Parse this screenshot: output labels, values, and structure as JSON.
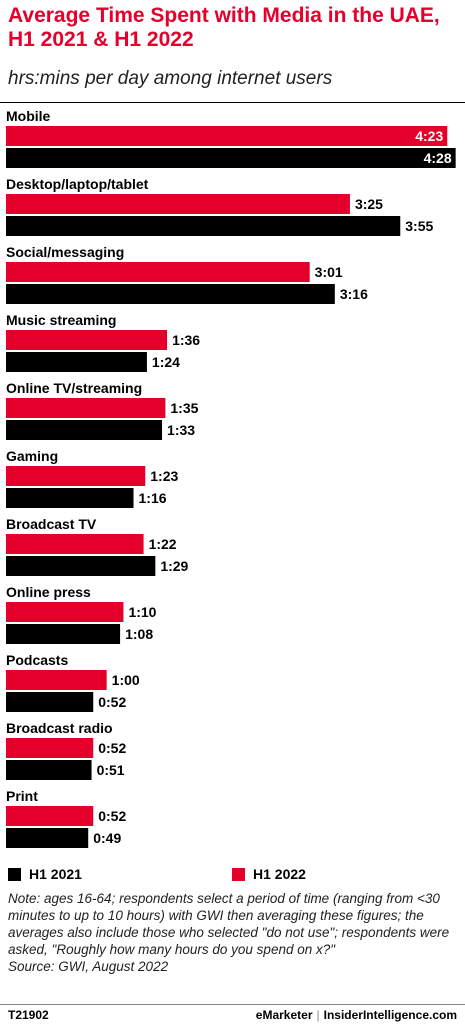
{
  "header": {
    "title": "Average Time Spent with Media in the UAE, H1 2021 & H1 2022",
    "subtitle": "hrs:mins per day among internet users"
  },
  "colors": {
    "h1_2022": "#e4002b",
    "h1_2021": "#000000"
  },
  "chart_data": {
    "type": "bar",
    "orientation": "horizontal",
    "categories": [
      "Mobile",
      "Desktop/laptop/tablet",
      "Social/messaging",
      "Music streaming",
      "Online TV/streaming",
      "Gaming",
      "Broadcast TV",
      "Online press",
      "Podcasts",
      "Broadcast radio",
      "Print"
    ],
    "series": [
      {
        "name": "H1 2022",
        "values": [
          263,
          205,
          181,
          96,
          95,
          83,
          82,
          70,
          60,
          52,
          52
        ],
        "labels": [
          "4:23",
          "3:25",
          "3:01",
          "1:36",
          "1:35",
          "1:23",
          "1:22",
          "1:10",
          "1:00",
          "0:52",
          "0:52"
        ]
      },
      {
        "name": "H1 2021",
        "values": [
          268,
          235,
          196,
          84,
          93,
          76,
          89,
          68,
          52,
          51,
          49
        ],
        "labels": [
          "4:28",
          "3:55",
          "3:16",
          "1:24",
          "1:33",
          "1:16",
          "1:29",
          "1:08",
          "0:52",
          "0:51",
          "0:49"
        ]
      }
    ],
    "value_unit": "minutes per day",
    "legend_position": "bottom-left",
    "grid": false
  },
  "legend": {
    "items": [
      "H1 2021",
      "H1 2022"
    ]
  },
  "notes": {
    "note": "Note: ages 16-64; respondents select a period of time (ranging from <30 minutes to up to 10 hours) with GWI then averaging these figures; the averages also include those who selected \"do not use\"; respondents were asked, \"Roughly how many hours do you spend on x?\"",
    "source": "Source:  GWI, August 2022"
  },
  "footer": {
    "code": "T21902",
    "brand_left": "eMarketer",
    "separator": "|",
    "brand_right": "InsiderIntelligence.com"
  }
}
